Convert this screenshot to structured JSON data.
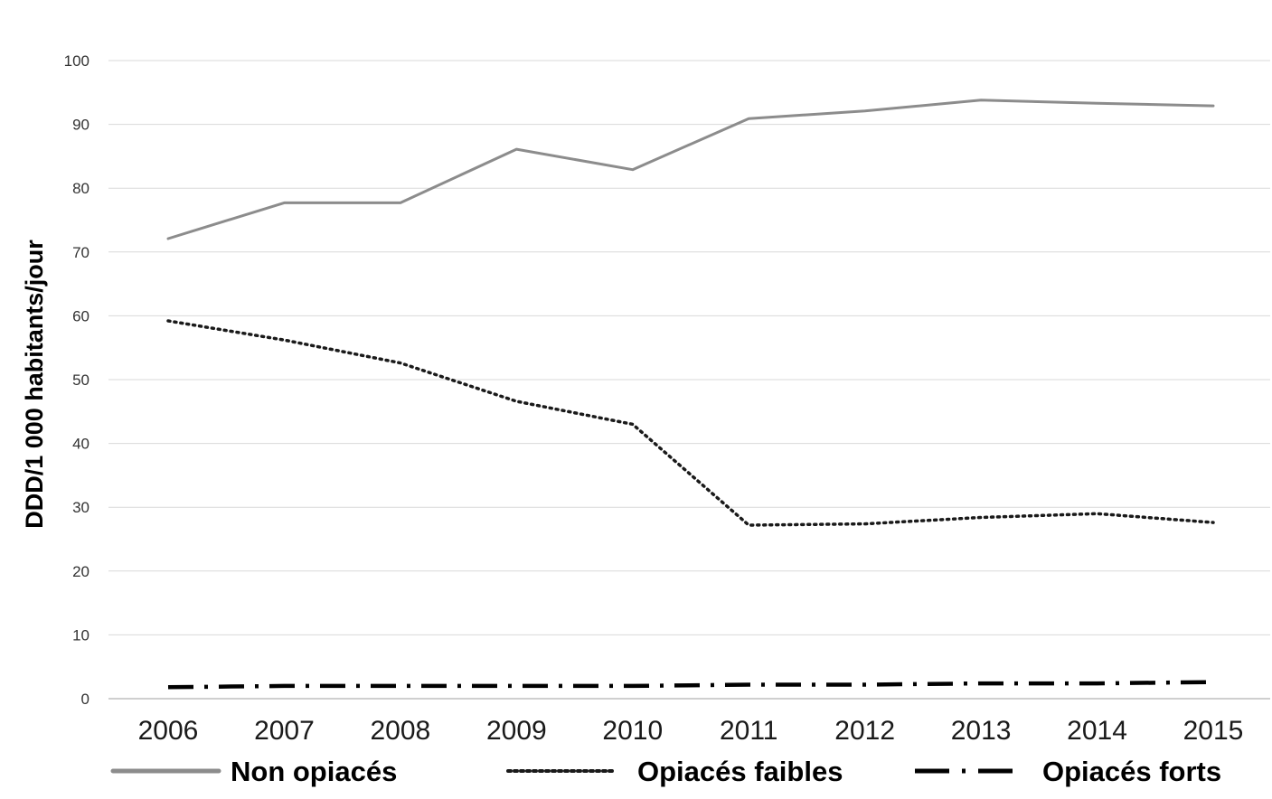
{
  "chart_data": {
    "type": "line",
    "title": "",
    "xlabel": "",
    "ylabel": "DDD/1 000 habitants/jour",
    "ylim": [
      0,
      100
    ],
    "yticks": [
      "0",
      "10",
      "20",
      "30",
      "40",
      "50",
      "60",
      "70",
      "80",
      "90",
      "100"
    ],
    "categories": [
      "2006",
      "2007",
      "2008",
      "2009",
      "2010",
      "2011",
      "2012",
      "2013",
      "2014",
      "2015"
    ],
    "grid": true,
    "legend_position": "bottom",
    "series": [
      {
        "name": "Non opiacés",
        "style": "solid",
        "color": "#8c8c8c",
        "values": [
          72.1,
          77.7,
          77.7,
          86.1,
          82.9,
          90.9,
          92.1,
          93.8,
          93.3,
          92.9
        ]
      },
      {
        "name": "Opiacés faibles",
        "style": "dotted",
        "color": "#1a1a1a",
        "values": [
          59.2,
          56.2,
          52.6,
          46.6,
          43.0,
          27.2,
          27.4,
          28.4,
          29.0,
          27.6
        ]
      },
      {
        "name": "Opiacés forts",
        "style": "dash-dot",
        "color": "#000000",
        "values": [
          1.8,
          2.0,
          2.0,
          2.0,
          2.0,
          2.2,
          2.2,
          2.4,
          2.4,
          2.6
        ]
      }
    ]
  }
}
